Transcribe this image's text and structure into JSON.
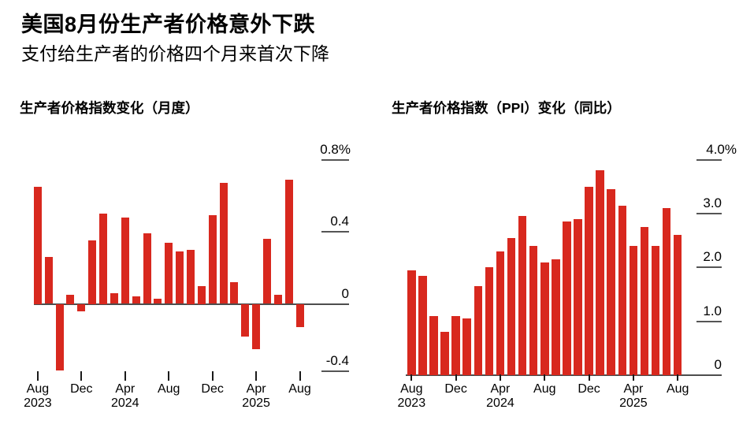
{
  "header": {
    "title": "美国8月份生产者价格意外下跌",
    "subtitle": "支付给生产者的价格四个月来首次下降"
  },
  "colors": {
    "bar_red": "#d8281e",
    "axis_gray": "#4d4d4d",
    "text_black": "#000000"
  },
  "chart_data": [
    {
      "type": "bar",
      "title": "生产者价格指数变化（月度）",
      "unit": "%",
      "legend": "none",
      "grid": "off",
      "ylim": [
        -0.5,
        0.9
      ],
      "y_ticks": [
        {
          "label": "0.8%",
          "value": 0.8
        },
        {
          "label": "0.4",
          "value": 0.4
        },
        {
          "label": "0",
          "value": 0
        },
        {
          "label": "-0.4",
          "value": -0.4
        }
      ],
      "x_ticks": [
        {
          "month": "Aug",
          "year": "2023",
          "index": 0
        },
        {
          "month": "Dec",
          "year": "",
          "index": 4
        },
        {
          "month": "Apr",
          "year": "2024",
          "index": 8
        },
        {
          "month": "Aug",
          "year": "",
          "index": 12
        },
        {
          "month": "Dec",
          "year": "",
          "index": 16
        },
        {
          "month": "Apr",
          "year": "2025",
          "index": 20
        },
        {
          "month": "Aug",
          "year": "",
          "index": 24
        }
      ],
      "categories": [
        "Aug 2023",
        "Sep 2023",
        "Oct 2023",
        "Nov 2023",
        "Dec 2023",
        "Jan 2024",
        "Feb 2024",
        "Mar 2024",
        "Apr 2024",
        "May 2024",
        "Jun 2024",
        "Jul 2024",
        "Aug 2024",
        "Sep 2024",
        "Oct 2024",
        "Nov 2024",
        "Dec 2024",
        "Jan 2025",
        "Feb 2025",
        "Mar 2025",
        "Apr 2025",
        "May 2025",
        "Jun 2025",
        "Jul 2025",
        "Aug 2025"
      ],
      "values": [
        0.65,
        0.26,
        -0.37,
        0.05,
        -0.04,
        0.35,
        0.5,
        0.06,
        0.48,
        0.04,
        0.39,
        0.03,
        0.34,
        0.29,
        0.3,
        0.1,
        0.49,
        0.67,
        0.12,
        -0.18,
        -0.25,
        0.36,
        0.05,
        0.69,
        -0.13
      ]
    },
    {
      "type": "bar",
      "title": "生产者价格指数（PPI）变化（同比）",
      "unit": "%",
      "legend": "none",
      "grid": "off",
      "ylim": [
        0,
        4.3
      ],
      "y_ticks": [
        {
          "label": "4.0%",
          "value": 4.0
        },
        {
          "label": "3.0",
          "value": 3.0
        },
        {
          "label": "2.0",
          "value": 2.0
        },
        {
          "label": "1.0",
          "value": 1.0
        },
        {
          "label": "0",
          "value": 0
        }
      ],
      "x_ticks": [
        {
          "month": "Aug",
          "year": "2023",
          "index": 0
        },
        {
          "month": "Dec",
          "year": "",
          "index": 4
        },
        {
          "month": "Apr",
          "year": "2024",
          "index": 8
        },
        {
          "month": "Aug",
          "year": "",
          "index": 12
        },
        {
          "month": "Dec",
          "year": "",
          "index": 16
        },
        {
          "month": "Apr",
          "year": "2025",
          "index": 20
        },
        {
          "month": "Aug",
          "year": "",
          "index": 24
        }
      ],
      "categories": [
        "Aug 2023",
        "Sep 2023",
        "Oct 2023",
        "Nov 2023",
        "Dec 2023",
        "Jan 2024",
        "Feb 2024",
        "Mar 2024",
        "Apr 2024",
        "May 2024",
        "Jun 2024",
        "Jul 2024",
        "Aug 2024",
        "Sep 2024",
        "Oct 2024",
        "Nov 2024",
        "Dec 2024",
        "Jan 2025",
        "Feb 2025",
        "Mar 2025",
        "Apr 2025",
        "May 2025",
        "Jun 2025",
        "Jul 2025",
        "Aug 2025"
      ],
      "values": [
        1.95,
        1.85,
        1.1,
        0.8,
        1.1,
        1.05,
        1.65,
        2.0,
        2.3,
        2.55,
        2.95,
        2.4,
        2.1,
        2.15,
        2.85,
        2.9,
        3.5,
        3.8,
        3.45,
        3.15,
        2.4,
        2.75,
        2.4,
        3.1,
        2.6
      ]
    }
  ]
}
